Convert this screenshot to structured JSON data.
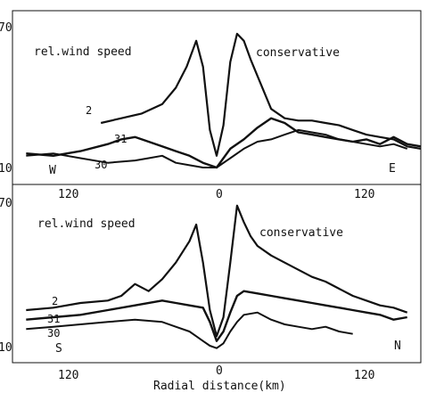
{
  "chart_data": [
    {
      "type": "line",
      "panel": "top",
      "title": "rel.wind speed",
      "annotation": "conservative",
      "side_labels": {
        "left": "W",
        "right": "E"
      },
      "y_ticks": [
        "70",
        "10"
      ],
      "x_ticks": [
        "120",
        "0",
        "120"
      ],
      "xlim": [
        -150,
        150
      ],
      "ylim": [
        10,
        70
      ],
      "series": [
        {
          "name": "2",
          "x": [
            -85,
            -70,
            -55,
            -40,
            -30,
            -22,
            -15,
            -10,
            -5,
            0,
            5,
            10,
            15,
            20,
            25,
            30,
            40,
            50,
            60,
            70,
            80,
            90,
            100,
            110,
            120,
            130,
            140,
            150
          ],
          "y": [
            29,
            31,
            33,
            37,
            44,
            53,
            64,
            53,
            26,
            15,
            28,
            55,
            67,
            64,
            56,
            49,
            35,
            31,
            30,
            30,
            29,
            28,
            26,
            24,
            23,
            22,
            19,
            18
          ]
        },
        {
          "name": "31",
          "x": [
            -140,
            -120,
            -100,
            -80,
            -70,
            -60,
            -50,
            -40,
            -30,
            -20,
            -10,
            0,
            10,
            20,
            30,
            40,
            50,
            60,
            70,
            80,
            90,
            100,
            110,
            120,
            130,
            140,
            150
          ],
          "y": [
            16,
            15,
            17,
            20,
            22,
            23,
            21,
            19,
            17,
            15,
            12,
            10,
            18,
            22,
            27,
            31,
            29,
            25,
            24,
            23,
            22,
            21,
            22,
            20,
            23,
            20,
            19
          ]
        },
        {
          "name": "30",
          "x": [
            -140,
            -120,
            -100,
            -80,
            -60,
            -50,
            -40,
            -30,
            -20,
            -10,
            0,
            10,
            20,
            30,
            40,
            50,
            60,
            70,
            80,
            90,
            100,
            110,
            120,
            130,
            140
          ],
          "y": [
            15,
            16,
            14,
            12,
            13,
            14,
            15,
            12,
            11,
            10,
            10,
            14,
            18,
            21,
            22,
            24,
            26,
            25,
            24,
            22,
            21,
            20,
            19,
            20,
            18
          ]
        }
      ]
    },
    {
      "type": "line",
      "panel": "bottom",
      "title": "rel.wind speed",
      "annotation": "conservative",
      "side_labels": {
        "left": "S",
        "right": "N"
      },
      "x_axis_label": "Radial distance(km)",
      "y_ticks": [
        "70",
        "10"
      ],
      "x_ticks": [
        "120",
        "0",
        "120"
      ],
      "xlim": [
        -150,
        150
      ],
      "ylim": [
        10,
        70
      ],
      "series": [
        {
          "name": "2",
          "x": [
            -140,
            -120,
            -100,
            -80,
            -70,
            -60,
            -50,
            -40,
            -30,
            -20,
            -15,
            -10,
            -5,
            0,
            5,
            10,
            15,
            20,
            25,
            30,
            40,
            50,
            60,
            70,
            80,
            90,
            100,
            110,
            120,
            130,
            140
          ],
          "y": [
            25,
            26,
            28,
            29,
            31,
            36,
            33,
            38,
            45,
            54,
            61,
            45,
            25,
            14,
            22,
            45,
            69,
            62,
            56,
            52,
            48,
            45,
            42,
            39,
            37,
            34,
            31,
            29,
            27,
            26,
            24
          ]
        },
        {
          "name": "31",
          "x": [
            -140,
            -120,
            -100,
            -80,
            -60,
            -40,
            -30,
            -20,
            -10,
            -5,
            0,
            5,
            10,
            15,
            20,
            30,
            40,
            50,
            60,
            70,
            80,
            90,
            100,
            110,
            120,
            130,
            140
          ],
          "y": [
            21,
            22,
            23,
            25,
            27,
            29,
            28,
            27,
            26,
            20,
            12,
            16,
            24,
            31,
            33,
            32,
            31,
            30,
            29,
            28,
            27,
            26,
            25,
            24,
            23,
            21,
            22
          ]
        },
        {
          "name": "30",
          "x": [
            -140,
            -120,
            -100,
            -80,
            -60,
            -40,
            -30,
            -20,
            -15,
            -10,
            -5,
            0,
            5,
            10,
            15,
            20,
            30,
            40,
            50,
            60,
            70,
            80,
            90,
            100
          ],
          "y": [
            17,
            18,
            19,
            20,
            21,
            20,
            18,
            16,
            14,
            12,
            10,
            9,
            11,
            16,
            20,
            23,
            24,
            21,
            19,
            18,
            17,
            18,
            16,
            15
          ]
        }
      ]
    }
  ]
}
